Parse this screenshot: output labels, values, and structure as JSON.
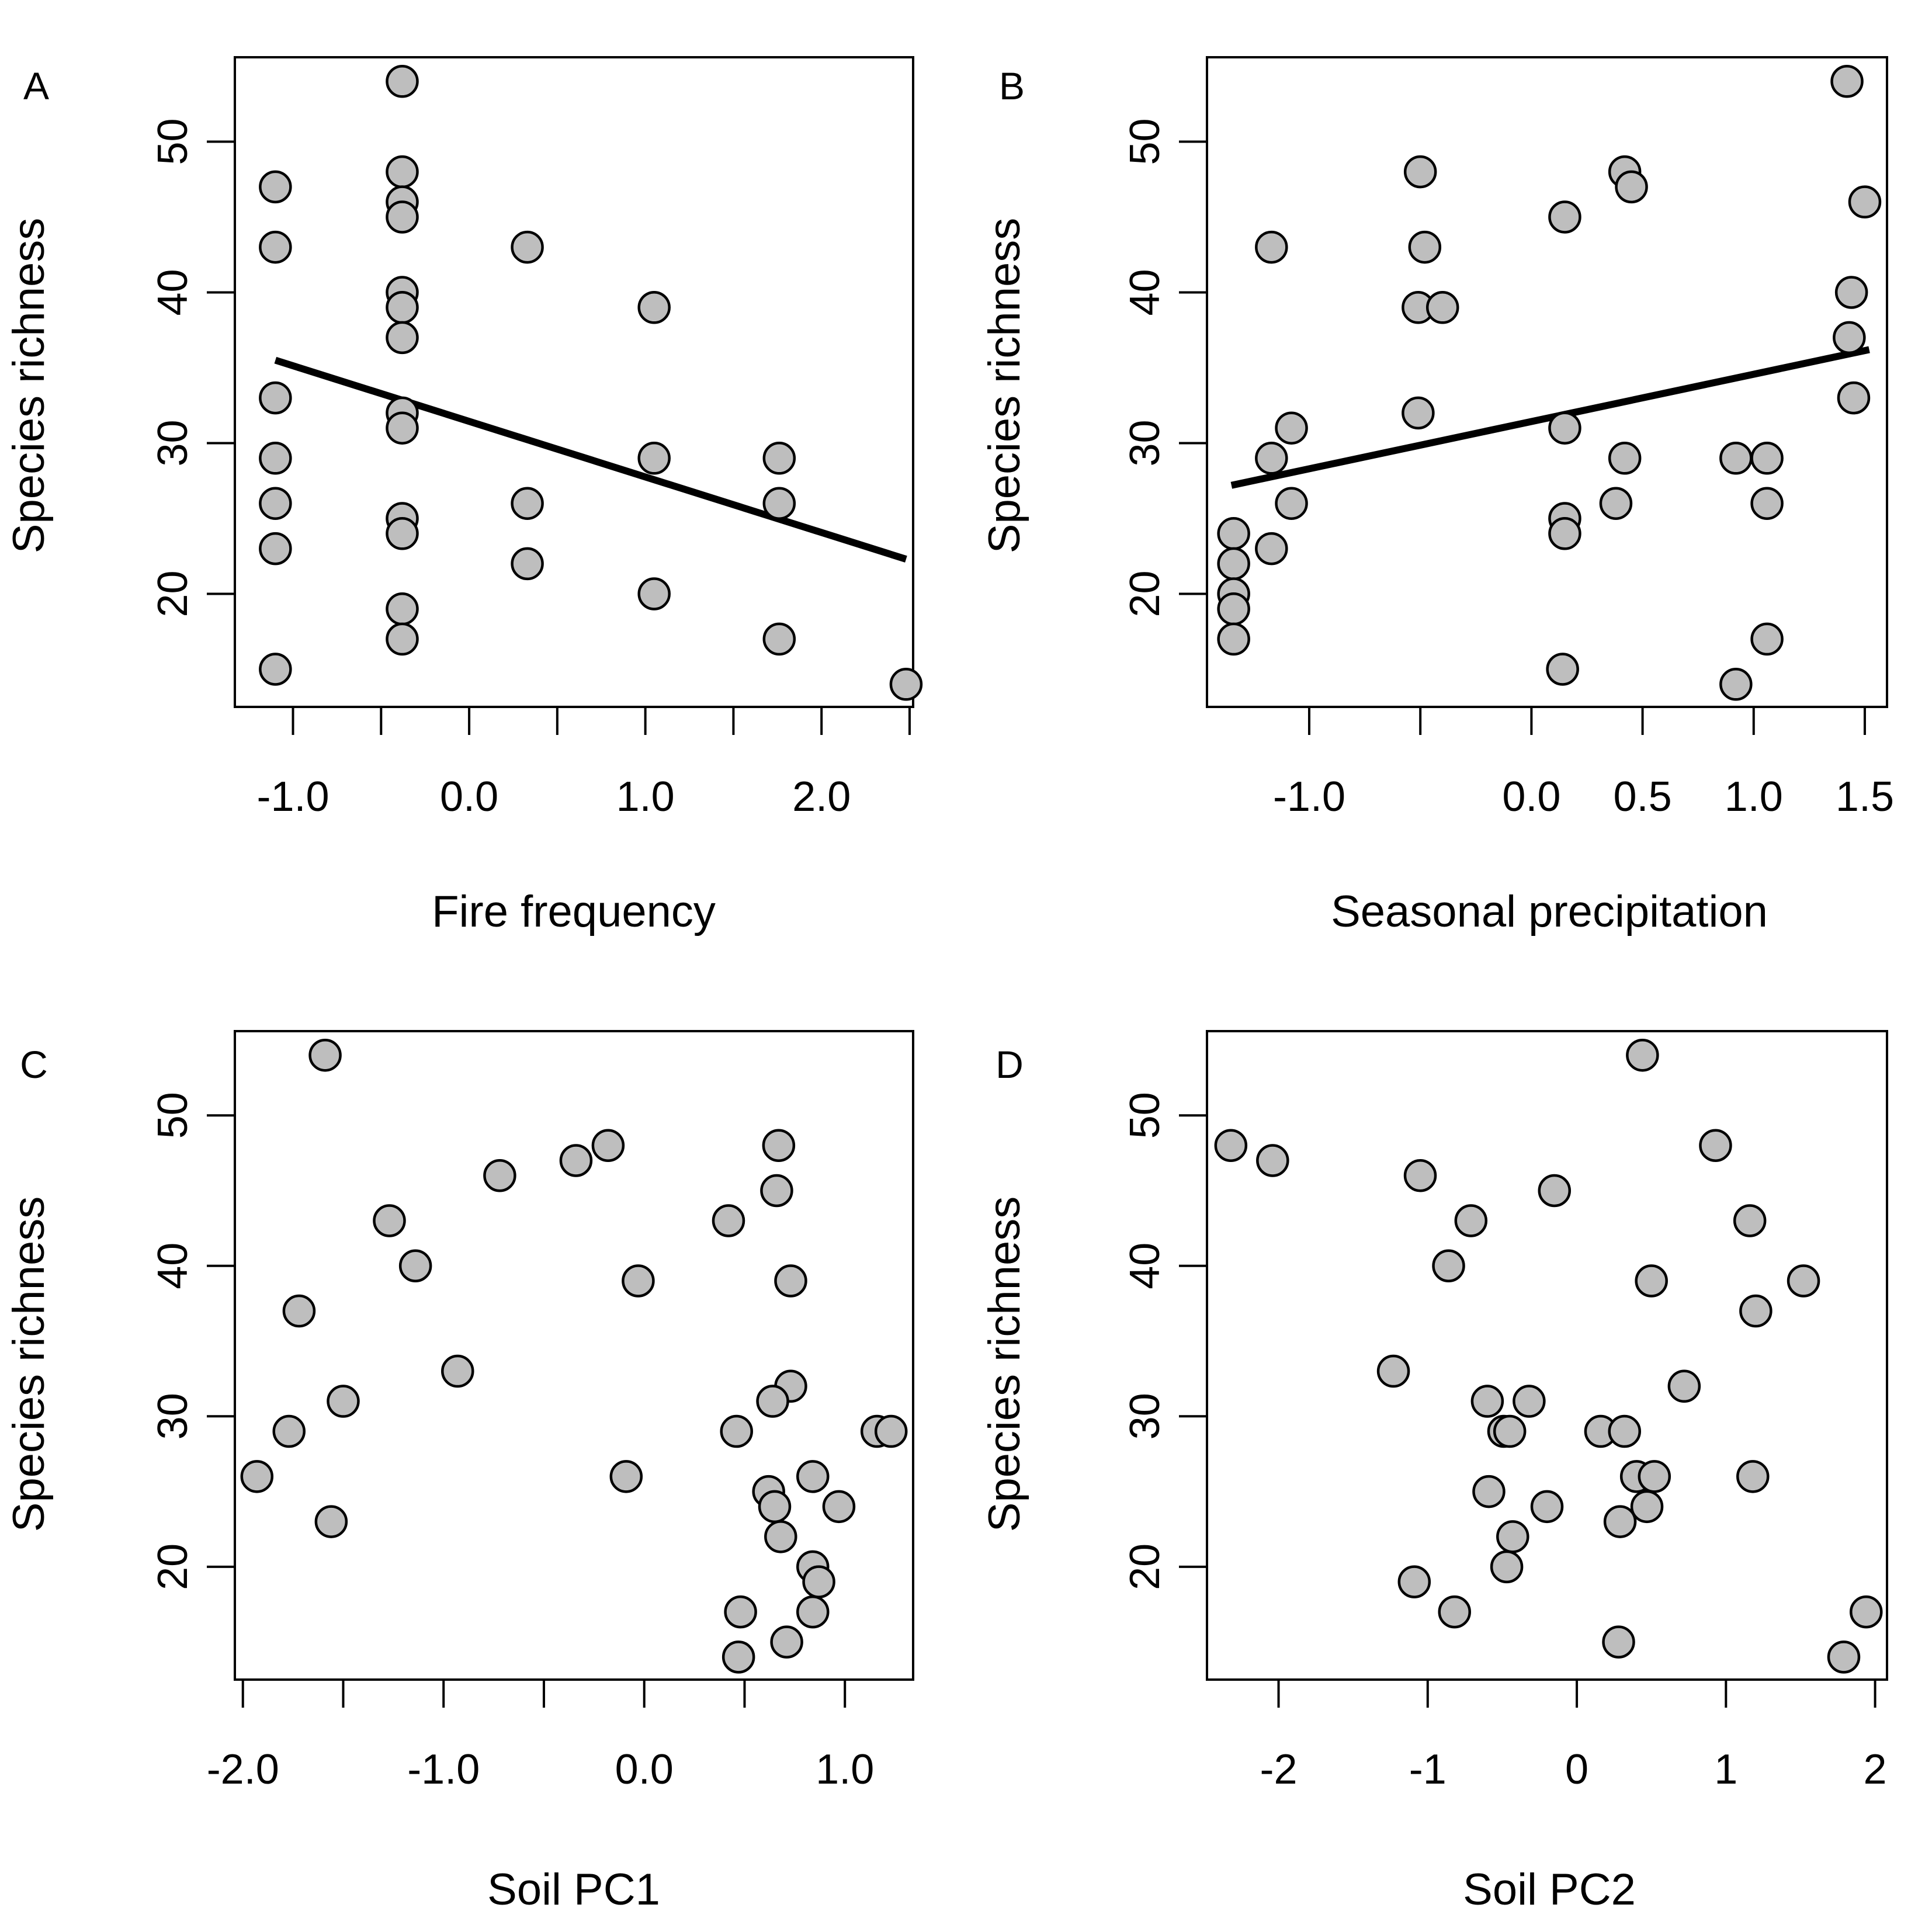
{
  "colors": {
    "point_fill": "#bebebe",
    "point_stroke": "#000000",
    "line": "#000000",
    "axis": "#000000",
    "background": "#ffffff"
  },
  "chart_data": [
    {
      "type": "scatter",
      "panel_label": "A",
      "xlabel": "Fire frequency",
      "ylabel": "Species richness",
      "xlim": [
        -1.33,
        2.52
      ],
      "ylim": [
        12.5,
        55.6
      ],
      "xticks": [
        -1.0,
        -0.5,
        0.0,
        0.5,
        1.0,
        1.5,
        2.0,
        2.5
      ],
      "xtick_labels": [
        "-1.0",
        "",
        "0.0",
        "",
        "1.0",
        "",
        "2.0",
        ""
      ],
      "yticks": [
        20,
        30,
        40,
        50
      ],
      "ytick_labels": [
        "20",
        "30",
        "40",
        "50"
      ],
      "regression_line": {
        "x": [
          -1.1,
          2.48
        ],
        "y": [
          35.5,
          22.3
        ]
      },
      "points": [
        {
          "x": -1.1,
          "y": 47
        },
        {
          "x": -1.1,
          "y": 43
        },
        {
          "x": -1.1,
          "y": 33
        },
        {
          "x": -1.1,
          "y": 29
        },
        {
          "x": -1.1,
          "y": 26
        },
        {
          "x": -1.1,
          "y": 23
        },
        {
          "x": -1.1,
          "y": 15
        },
        {
          "x": -0.38,
          "y": 54
        },
        {
          "x": -0.38,
          "y": 48
        },
        {
          "x": -0.38,
          "y": 46
        },
        {
          "x": -0.38,
          "y": 45
        },
        {
          "x": -0.38,
          "y": 40
        },
        {
          "x": -0.38,
          "y": 39
        },
        {
          "x": -0.38,
          "y": 37
        },
        {
          "x": -0.38,
          "y": 32
        },
        {
          "x": -0.38,
          "y": 31
        },
        {
          "x": -0.38,
          "y": 25
        },
        {
          "x": -0.38,
          "y": 24
        },
        {
          "x": -0.38,
          "y": 19
        },
        {
          "x": -0.38,
          "y": 17
        },
        {
          "x": 0.33,
          "y": 43
        },
        {
          "x": 0.33,
          "y": 26
        },
        {
          "x": 0.33,
          "y": 22
        },
        {
          "x": 1.05,
          "y": 39
        },
        {
          "x": 1.05,
          "y": 29
        },
        {
          "x": 1.05,
          "y": 20
        },
        {
          "x": 1.76,
          "y": 29
        },
        {
          "x": 1.76,
          "y": 26
        },
        {
          "x": 1.76,
          "y": 17
        },
        {
          "x": 2.48,
          "y": 14
        }
      ]
    },
    {
      "type": "scatter",
      "panel_label": "B",
      "xlabel": "Seasonal precipitation",
      "ylabel": "Species richness",
      "xlim": [
        -1.46,
        1.6
      ],
      "ylim": [
        12.5,
        55.6
      ],
      "xticks": [
        -1.0,
        -0.5,
        0.0,
        0.5,
        1.0,
        1.5
      ],
      "xtick_labels": [
        "-1.0",
        "",
        "0.0",
        "0.5",
        "1.0",
        "1.5"
      ],
      "yticks": [
        20,
        30,
        40,
        50
      ],
      "ytick_labels": [
        "20",
        "30",
        "40",
        "50"
      ],
      "regression_line": {
        "x": [
          -1.35,
          1.52
        ],
        "y": [
          27.2,
          36.2
        ]
      },
      "points": [
        {
          "x": -1.34,
          "y": 24
        },
        {
          "x": -1.34,
          "y": 22
        },
        {
          "x": -1.34,
          "y": 20
        },
        {
          "x": -1.34,
          "y": 19
        },
        {
          "x": -1.34,
          "y": 17
        },
        {
          "x": -1.17,
          "y": 43
        },
        {
          "x": -1.17,
          "y": 29
        },
        {
          "x": -1.17,
          "y": 23
        },
        {
          "x": -1.08,
          "y": 31
        },
        {
          "x": -1.08,
          "y": 26
        },
        {
          "x": -0.5,
          "y": 48
        },
        {
          "x": -0.48,
          "y": 43
        },
        {
          "x": -0.51,
          "y": 39
        },
        {
          "x": -0.51,
          "y": 32
        },
        {
          "x": -0.4,
          "y": 39
        },
        {
          "x": 0.15,
          "y": 45
        },
        {
          "x": 0.15,
          "y": 31
        },
        {
          "x": 0.15,
          "y": 25
        },
        {
          "x": 0.15,
          "y": 24
        },
        {
          "x": 0.14,
          "y": 15
        },
        {
          "x": 0.38,
          "y": 26
        },
        {
          "x": 0.42,
          "y": 48
        },
        {
          "x": 0.45,
          "y": 47
        },
        {
          "x": 0.42,
          "y": 29
        },
        {
          "x": 0.92,
          "y": 29
        },
        {
          "x": 0.92,
          "y": 14
        },
        {
          "x": 1.06,
          "y": 29
        },
        {
          "x": 1.06,
          "y": 26
        },
        {
          "x": 1.06,
          "y": 17
        },
        {
          "x": 1.42,
          "y": 54
        },
        {
          "x": 1.5,
          "y": 46
        },
        {
          "x": 1.44,
          "y": 40
        },
        {
          "x": 1.43,
          "y": 37
        },
        {
          "x": 1.45,
          "y": 33
        }
      ]
    },
    {
      "type": "scatter",
      "panel_label": "C",
      "xlabel": "Soil PC1",
      "ylabel": "Species richness",
      "xlim": [
        -2.04,
        1.34
      ],
      "ylim": [
        12.5,
        55.6
      ],
      "xticks": [
        -2.0,
        -1.5,
        -1.0,
        -0.5,
        0.0,
        0.5,
        1.0
      ],
      "xtick_labels": [
        "-2.0",
        "",
        "-1.0",
        "",
        "0.0",
        "",
        "1.0"
      ],
      "yticks": [
        20,
        30,
        40,
        50
      ],
      "ytick_labels": [
        "20",
        "30",
        "40",
        "50"
      ],
      "points": [
        {
          "x": -1.59,
          "y": 54
        },
        {
          "x": -0.72,
          "y": 46
        },
        {
          "x": -0.34,
          "y": 47
        },
        {
          "x": -0.18,
          "y": 48
        },
        {
          "x": -1.27,
          "y": 43
        },
        {
          "x": -1.14,
          "y": 40
        },
        {
          "x": -1.72,
          "y": 37
        },
        {
          "x": -0.93,
          "y": 33
        },
        {
          "x": -1.5,
          "y": 31
        },
        {
          "x": -1.77,
          "y": 29
        },
        {
          "x": -1.93,
          "y": 26
        },
        {
          "x": -1.56,
          "y": 23
        },
        {
          "x": -0.03,
          "y": 39
        },
        {
          "x": -0.09,
          "y": 26
        },
        {
          "x": 0.42,
          "y": 43
        },
        {
          "x": 0.46,
          "y": 29
        },
        {
          "x": 0.48,
          "y": 17
        },
        {
          "x": 0.47,
          "y": 14
        },
        {
          "x": 0.67,
          "y": 48
        },
        {
          "x": 0.66,
          "y": 45
        },
        {
          "x": 0.73,
          "y": 39
        },
        {
          "x": 0.73,
          "y": 32
        },
        {
          "x": 0.64,
          "y": 31
        },
        {
          "x": 0.62,
          "y": 25
        },
        {
          "x": 0.65,
          "y": 24
        },
        {
          "x": 0.68,
          "y": 22
        },
        {
          "x": 0.71,
          "y": 15
        },
        {
          "x": 0.84,
          "y": 26
        },
        {
          "x": 0.84,
          "y": 20
        },
        {
          "x": 0.87,
          "y": 19
        },
        {
          "x": 0.84,
          "y": 17
        },
        {
          "x": 0.97,
          "y": 24
        },
        {
          "x": 1.16,
          "y": 29
        },
        {
          "x": 1.23,
          "y": 29
        }
      ]
    },
    {
      "type": "scatter",
      "panel_label": "D",
      "xlabel": "Soil PC2",
      "ylabel": "Species richness",
      "xlim": [
        -2.48,
        2.08
      ],
      "ylim": [
        12.5,
        55.6
      ],
      "xticks": [
        -2,
        -1,
        0,
        1,
        2
      ],
      "xtick_labels": [
        "-2",
        "-1",
        "0",
        "1",
        "2"
      ],
      "yticks": [
        20,
        30,
        40,
        50
      ],
      "ytick_labels": [
        "20",
        "30",
        "40",
        "50"
      ],
      "points": [
        {
          "x": -2.32,
          "y": 48
        },
        {
          "x": -2.04,
          "y": 47
        },
        {
          "x": -1.05,
          "y": 46
        },
        {
          "x": -0.71,
          "y": 43
        },
        {
          "x": -0.86,
          "y": 40
        },
        {
          "x": -1.23,
          "y": 33
        },
        {
          "x": -1.09,
          "y": 19
        },
        {
          "x": -0.82,
          "y": 17
        },
        {
          "x": -0.6,
          "y": 31
        },
        {
          "x": -0.59,
          "y": 25
        },
        {
          "x": -0.49,
          "y": 29
        },
        {
          "x": -0.45,
          "y": 29
        },
        {
          "x": -0.43,
          "y": 22
        },
        {
          "x": -0.47,
          "y": 20
        },
        {
          "x": -0.32,
          "y": 31
        },
        {
          "x": -0.2,
          "y": 24
        },
        {
          "x": -0.15,
          "y": 45
        },
        {
          "x": 0.16,
          "y": 29
        },
        {
          "x": 0.29,
          "y": 23
        },
        {
          "x": 0.28,
          "y": 15
        },
        {
          "x": 0.32,
          "y": 29
        },
        {
          "x": 0.4,
          "y": 26
        },
        {
          "x": 0.44,
          "y": 54
        },
        {
          "x": 0.5,
          "y": 39
        },
        {
          "x": 0.52,
          "y": 26
        },
        {
          "x": 0.47,
          "y": 24
        },
        {
          "x": 0.72,
          "y": 32
        },
        {
          "x": 0.93,
          "y": 48
        },
        {
          "x": 1.16,
          "y": 43
        },
        {
          "x": 1.2,
          "y": 37
        },
        {
          "x": 1.18,
          "y": 26
        },
        {
          "x": 1.52,
          "y": 39
        },
        {
          "x": 1.79,
          "y": 14
        },
        {
          "x": 1.94,
          "y": 17
        }
      ]
    }
  ]
}
